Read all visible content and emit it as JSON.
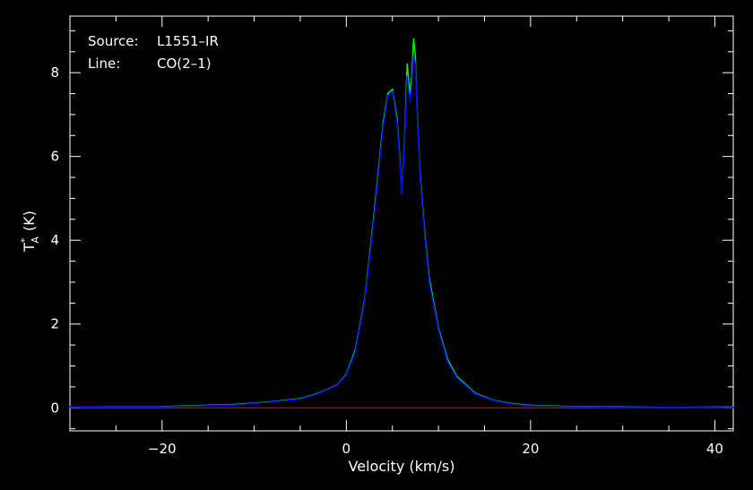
{
  "annotations": {
    "source_label": "Source:",
    "source_value": "L1551–IR",
    "line_label": "Line:",
    "line_value": "CO(2–1)"
  },
  "chart_data": {
    "type": "line",
    "xlabel": "Velocity (km/s)",
    "ylabel_main": "T",
    "ylabel_sup": "*",
    "ylabel_sub": "A",
    "ylabel_unit": "(K)",
    "xlim": [
      -30,
      42
    ],
    "ylim": [
      -0.55,
      9.35
    ],
    "xticks": [
      -20,
      0,
      20,
      40
    ],
    "xtick_labels": [
      "−20",
      "0",
      "20",
      "40"
    ],
    "yticks": [
      0,
      2,
      4,
      6,
      8
    ],
    "yticks_labels": [
      "0",
      "2",
      "4",
      "6",
      "8"
    ],
    "grid": false,
    "colors": {
      "background": "#000000",
      "axes": "#ffffff",
      "series_green": "#00ff00",
      "series_blue": "#0000ff",
      "baseline": "#ff0000"
    },
    "baseline": {
      "y": 0,
      "x_range": [
        -30,
        42
      ]
    },
    "series": [
      {
        "color": "#00ff00",
        "x": [
          -30,
          -20,
          -12,
          -8,
          -5,
          -3,
          -1,
          0,
          1,
          2,
          3,
          4,
          4.5,
          5,
          5.5,
          5.8,
          6.0,
          6.3,
          6.6,
          6.9,
          7.1,
          7.3,
          7.5,
          7.7,
          8,
          8.5,
          9,
          10,
          11,
          12,
          14,
          16,
          18,
          20,
          25,
          30,
          35,
          42
        ],
        "y": [
          0.02,
          0.03,
          0.08,
          0.15,
          0.22,
          0.35,
          0.55,
          0.8,
          1.4,
          2.6,
          4.6,
          6.8,
          7.5,
          7.6,
          6.9,
          6.0,
          5.1,
          6.3,
          8.2,
          7.5,
          7.9,
          8.8,
          8.4,
          7.0,
          5.6,
          4.2,
          3.1,
          1.9,
          1.15,
          0.75,
          0.35,
          0.18,
          0.1,
          0.06,
          0.03,
          0.02,
          0.01,
          0.02
        ]
      },
      {
        "color": "#0000ff",
        "x": [
          -30,
          -20,
          -12,
          -8,
          -5,
          -3,
          -1,
          0,
          1,
          2,
          3,
          4,
          4.5,
          5,
          5.5,
          5.8,
          6.0,
          6.3,
          6.6,
          6.9,
          7.1,
          7.3,
          7.5,
          7.7,
          8,
          8.5,
          9,
          10,
          11,
          12,
          14,
          16,
          18,
          20,
          25,
          30,
          35,
          42
        ],
        "y": [
          0.02,
          0.02,
          0.07,
          0.14,
          0.21,
          0.34,
          0.54,
          0.78,
          1.35,
          2.55,
          4.5,
          6.7,
          7.45,
          7.55,
          6.8,
          5.9,
          5.1,
          6.2,
          7.9,
          7.3,
          7.7,
          8.4,
          8.2,
          6.9,
          5.5,
          4.1,
          3.0,
          1.85,
          1.1,
          0.72,
          0.33,
          0.17,
          0.09,
          0.05,
          0.02,
          0.01,
          0.01,
          0.01
        ]
      }
    ]
  }
}
